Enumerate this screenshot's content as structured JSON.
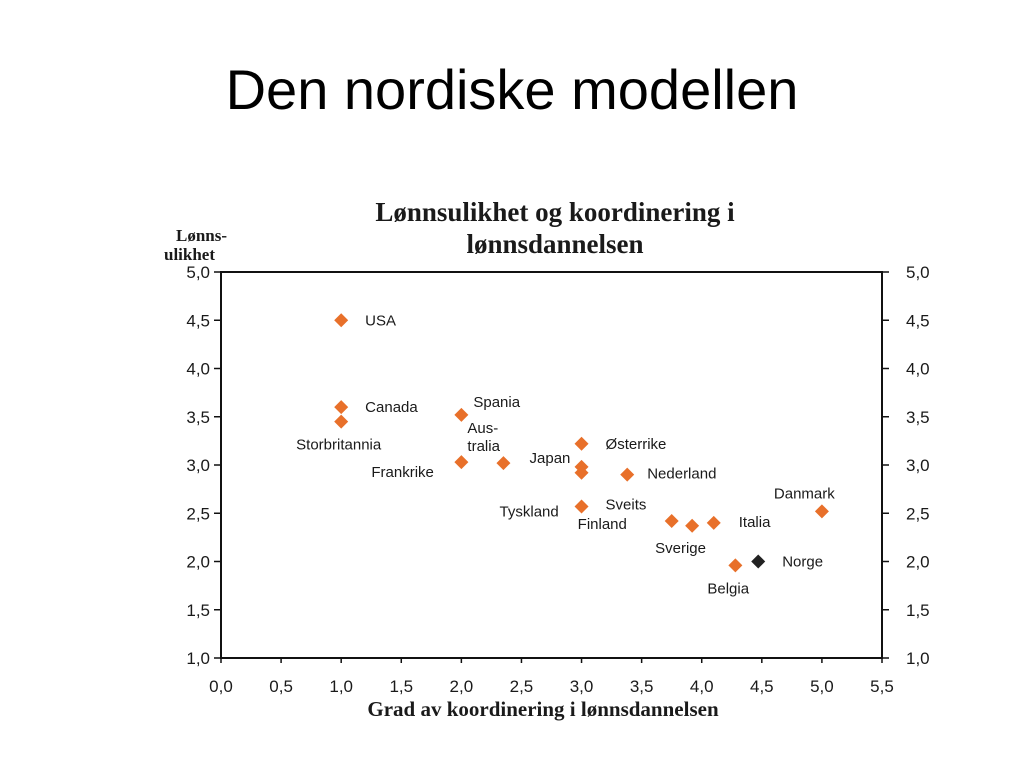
{
  "slide": {
    "title": "Den nordiske modellen"
  },
  "chart_data": {
    "type": "scatter",
    "title_lines": [
      "Lønnsulikhet og koordinering i",
      "lønnsdannelsen"
    ],
    "ylabel_lines": [
      "Lønns-",
      "ulikhet"
    ],
    "xlabel": "Grad av koordinering i lønnsdannelsen",
    "xlim": [
      0,
      5.5
    ],
    "ylim": [
      1.0,
      5.0
    ],
    "xticks": [
      "0,0",
      "0,5",
      "1,0",
      "1,5",
      "2,0",
      "2,5",
      "3,0",
      "3,5",
      "4,0",
      "4,5",
      "5,0",
      "5,5"
    ],
    "yticks": [
      "1,0",
      "1,5",
      "2,0",
      "2,5",
      "3,0",
      "3,5",
      "4,0",
      "4,5",
      "5,0"
    ],
    "grid": false,
    "secondary_y_axis": true,
    "colors": {
      "default": "#E8702A",
      "highlight": "#222222"
    },
    "points": [
      {
        "label": "USA",
        "x": 1.0,
        "y": 4.5
      },
      {
        "label": "Canada",
        "x": 1.0,
        "y": 3.6
      },
      {
        "label": "Storbritannia",
        "x": 1.0,
        "y": 3.45
      },
      {
        "label": "Spania",
        "x": 2.0,
        "y": 3.52
      },
      {
        "label": "Aus-\ntralia",
        "x": 2.35,
        "y": 3.02
      },
      {
        "label": "Frankrike",
        "x": 2.0,
        "y": 3.03
      },
      {
        "label": "Japan",
        "x": 3.0,
        "y": 2.98
      },
      {
        "label": "Tyskland",
        "x": 3.0,
        "y": 2.92
      },
      {
        "label": "Østerrike",
        "x": 3.0,
        "y": 3.22
      },
      {
        "label": "Nederland",
        "x": 3.38,
        "y": 2.9
      },
      {
        "label": "Sveits",
        "x": 3.0,
        "y": 2.57
      },
      {
        "label": "Finland",
        "x": 3.75,
        "y": 2.42
      },
      {
        "label": "Sverige",
        "x": 3.92,
        "y": 2.37
      },
      {
        "label": "Italia",
        "x": 4.1,
        "y": 2.4
      },
      {
        "label": "Belgia",
        "x": 4.28,
        "y": 1.96
      },
      {
        "label": "Norge",
        "x": 4.47,
        "y": 2.0,
        "highlight": true
      },
      {
        "label": "Danmark",
        "x": 5.0,
        "y": 2.52
      }
    ]
  }
}
